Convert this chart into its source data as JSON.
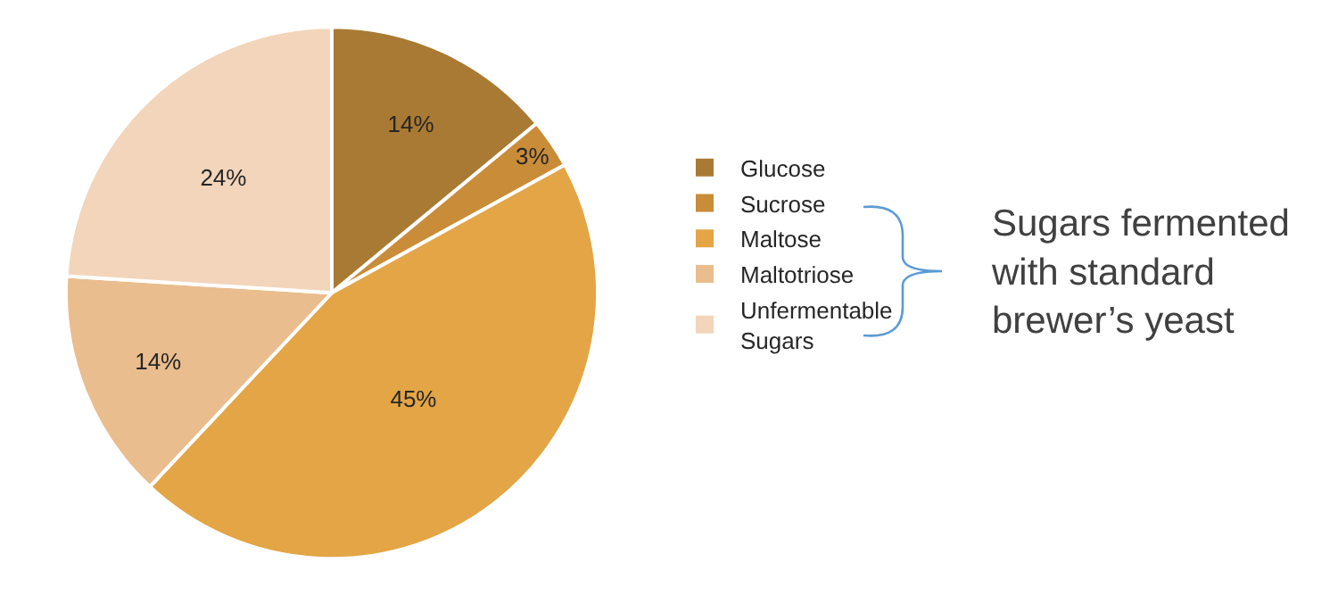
{
  "chart_data": {
    "type": "pie",
    "categories": [
      "Glucose",
      "Sucrose",
      "Maltose",
      "Maltotriose",
      "Unfermentable Sugars"
    ],
    "values": [
      14,
      3,
      45,
      14,
      24
    ],
    "colors": [
      "#a97a33",
      "#c98c38",
      "#e3a545",
      "#eabd8e",
      "#f2d5bb"
    ],
    "value_labels": [
      "14%",
      "3%",
      "45%",
      "14%",
      "24%"
    ],
    "legend": "right",
    "annotations": [
      "Sugars fermented with standard brewer’s yeast"
    ]
  }
}
